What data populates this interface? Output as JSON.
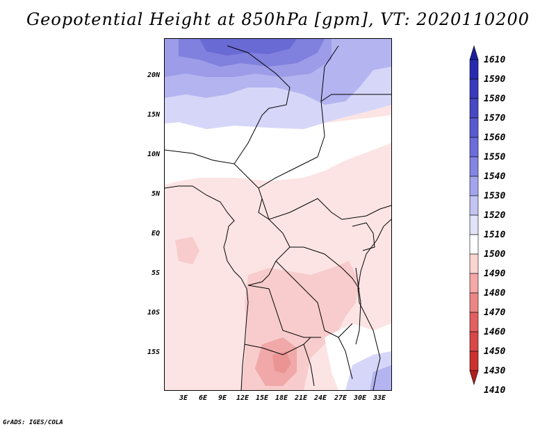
{
  "title": "Geopotential Height at 850hPa [gpm], VT: 2020110200",
  "latitude_labels": [
    "20N",
    "15N",
    "10N",
    "5N",
    "EQ",
    "5S",
    "10S",
    "15S"
  ],
  "longitude_labels": [
    "3E",
    "6E",
    "9E",
    "12E",
    "15E",
    "18E",
    "21E",
    "24E",
    "27E",
    "30E",
    "33E"
  ],
  "legend": {
    "levels": [
      "1610",
      "1590",
      "1580",
      "1570",
      "1560",
      "1550",
      "1540",
      "1530",
      "1520",
      "1510",
      "1500",
      "1490",
      "1480",
      "1470",
      "1460",
      "1450",
      "1430",
      "1410"
    ],
    "colors": [
      "#1e1ea0",
      "#2a2ab0",
      "#3a3abc",
      "#4848c4",
      "#5a5ad0",
      "#6c6cdc",
      "#8484e4",
      "#a4a4ec",
      "#c4c4f2",
      "#e2e2fa",
      "#ffffff",
      "#fbd4d4",
      "#f4a8a8",
      "#ec8686",
      "#e26060",
      "#d84848",
      "#cc3030",
      "#b02020"
    ]
  },
  "colors": {
    "blue_dark": "#6a6ad8",
    "blue_mid": "#a8a8ee",
    "blue_light": "#d6d6f8",
    "pink_light": "#fce4e4",
    "pink_mid": "#f8c8c8",
    "pink_dark": "#f0a0a0"
  },
  "credit": "GrADS: IGES/COLA"
}
